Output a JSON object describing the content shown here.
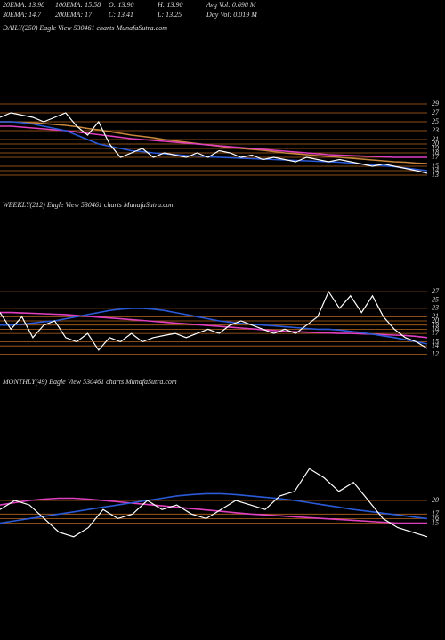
{
  "header": [
    "20EMA: 13.98",
    "100EMA: 15.58",
    "O: 13.90",
    "H: 13.90",
    "Avg Vol: 0.698  M",
    "30EMA: 14.7",
    "200EMA: 17",
    "C: 13.41",
    "L: 13.25",
    "Day Vol: 0.019  M"
  ],
  "chart_data": [
    {
      "type": "line",
      "title": "DAILY(250) Eagle   View  530461 charts MunafaSutra.com",
      "ylim": [
        10,
        30
      ],
      "yticks": [
        29,
        27,
        25,
        23,
        21,
        20,
        19,
        18,
        17,
        15,
        14,
        13
      ],
      "grid": true,
      "series": [
        {
          "color": "#c8863c",
          "values": [
            25,
            25,
            24.9,
            24.8,
            24.6,
            24.4,
            24.2,
            23.9,
            23.5,
            23.2,
            22.8,
            22.4,
            22,
            21.7,
            21.4,
            21,
            20.7,
            20.4,
            20.1,
            19.8,
            19.5,
            19.2,
            19,
            18.8,
            18.6,
            18.3,
            18,
            17.8,
            17.6,
            17.4,
            17.2,
            17,
            16.8,
            16.6,
            16.4,
            16.2,
            16,
            15.9,
            15.7,
            15.58
          ]
        },
        {
          "color": "#e040c0",
          "values": [
            24,
            24,
            23.8,
            23.6,
            23.4,
            23.2,
            23,
            22.7,
            22.4,
            22.1,
            21.8,
            21.5,
            21.2,
            21,
            20.8,
            20.6,
            20.4,
            20.2,
            20,
            19.8,
            19.6,
            19.4,
            19.2,
            19,
            18.8,
            18.6,
            18.4,
            18.2,
            18,
            17.8,
            17.6,
            17.5,
            17.4,
            17.3,
            17.2,
            17.1,
            17,
            17,
            17,
            17
          ]
        },
        {
          "color": "#2a5ad8",
          "values": [
            25,
            25,
            24.8,
            24.5,
            24,
            23.5,
            23,
            22,
            21,
            20,
            19.5,
            19,
            18.5,
            18.3,
            18,
            17.8,
            17.6,
            17.4,
            17.3,
            17.1,
            17,
            16.9,
            16.8,
            16.7,
            16.6,
            16.5,
            16.4,
            16.3,
            16.2,
            16.1,
            16,
            15.9,
            15.7,
            15.5,
            15.3,
            15.1,
            14.9,
            14.6,
            14.3,
            14
          ]
        },
        {
          "color": "#ffffff",
          "values": [
            26,
            27,
            26.5,
            26,
            25,
            26,
            27,
            24,
            22,
            25,
            20,
            17,
            18,
            19,
            17,
            18,
            17.5,
            17,
            18,
            17,
            18.5,
            18,
            17,
            17.5,
            16.5,
            17,
            16.5,
            16,
            17,
            16.5,
            16,
            16.5,
            16,
            15.5,
            15,
            15.5,
            15,
            14.5,
            14,
            13.41
          ]
        }
      ]
    },
    {
      "type": "line",
      "title": "WEEKLY(212) Eagle   View  530461 charts MunafaSutra.com",
      "ylim": [
        10,
        30
      ],
      "yticks": [
        27,
        25,
        23,
        21,
        20,
        19,
        18,
        17,
        15,
        14,
        12
      ],
      "grid": true,
      "series": [
        {
          "color": "#e040c0",
          "values": [
            22,
            22,
            21.9,
            21.8,
            21.7,
            21.6,
            21.5,
            21.3,
            21.1,
            20.9,
            20.7,
            20.5,
            20.3,
            20.1,
            19.9,
            19.7,
            19.5,
            19.3,
            19.1,
            18.9,
            18.7,
            18.5,
            18.3,
            18.1,
            17.9,
            17.7,
            17.5,
            17.4,
            17.3,
            17.2,
            17.1,
            17,
            17,
            16.9,
            16.8,
            16.7,
            16.6,
            16.5,
            16.3,
            16
          ]
        },
        {
          "color": "#2a5ad8",
          "values": [
            19,
            19,
            19.2,
            19.5,
            19.8,
            20,
            20.5,
            21,
            21.5,
            22,
            22.5,
            22.8,
            23,
            23,
            22.8,
            22.5,
            22,
            21.5,
            21,
            20.5,
            20,
            19.7,
            19.4,
            19.2,
            19,
            18.8,
            18.6,
            18.4,
            18.2,
            18,
            18,
            17.8,
            17.5,
            17.2,
            16.8,
            16.4,
            16,
            15.5,
            15,
            14.5
          ]
        },
        {
          "color": "#ffffff",
          "values": [
            22,
            18,
            21,
            16,
            19,
            20,
            16,
            15,
            17,
            13,
            16,
            15,
            17,
            15,
            16,
            16.5,
            17,
            16,
            17,
            18,
            17,
            19,
            20,
            19,
            18,
            17,
            18,
            17,
            19,
            21,
            27,
            23,
            26,
            22,
            26,
            21,
            18,
            16,
            15,
            13.41
          ]
        }
      ]
    },
    {
      "type": "line",
      "title": "MONTHLY(49) Eagle   View  530461 charts MunafaSutra.com",
      "ylim": [
        10,
        30
      ],
      "yticks": [
        20,
        17,
        16,
        15
      ],
      "grid": true,
      "series": [
        {
          "color": "#e040c0",
          "values": [
            19,
            19.5,
            20,
            20.3,
            20.5,
            20.5,
            20.3,
            20,
            19.7,
            19.4,
            19.1,
            18.8,
            18.5,
            18.2,
            17.9,
            17.6,
            17.3,
            17,
            16.8,
            16.6,
            16.4,
            16.2,
            16,
            15.8,
            15.6,
            15.4,
            15.2,
            15,
            15,
            15
          ]
        },
        {
          "color": "#2a5ad8",
          "values": [
            15,
            15.5,
            16,
            16.5,
            17,
            17.5,
            18,
            18.5,
            19,
            19.5,
            20,
            20.5,
            21,
            21.3,
            21.5,
            21.5,
            21.3,
            21,
            20.7,
            20.4,
            20,
            19.5,
            19,
            18.5,
            18,
            17.6,
            17.2,
            16.8,
            16.4,
            16
          ]
        },
        {
          "color": "#ffffff",
          "values": [
            18,
            20,
            19,
            16,
            13,
            12,
            14,
            18,
            16,
            17,
            20,
            18,
            19,
            17,
            16,
            18,
            20,
            19,
            18,
            21,
            22,
            27,
            25,
            22,
            24,
            20,
            16,
            14,
            13,
            12
          ]
        }
      ]
    }
  ]
}
